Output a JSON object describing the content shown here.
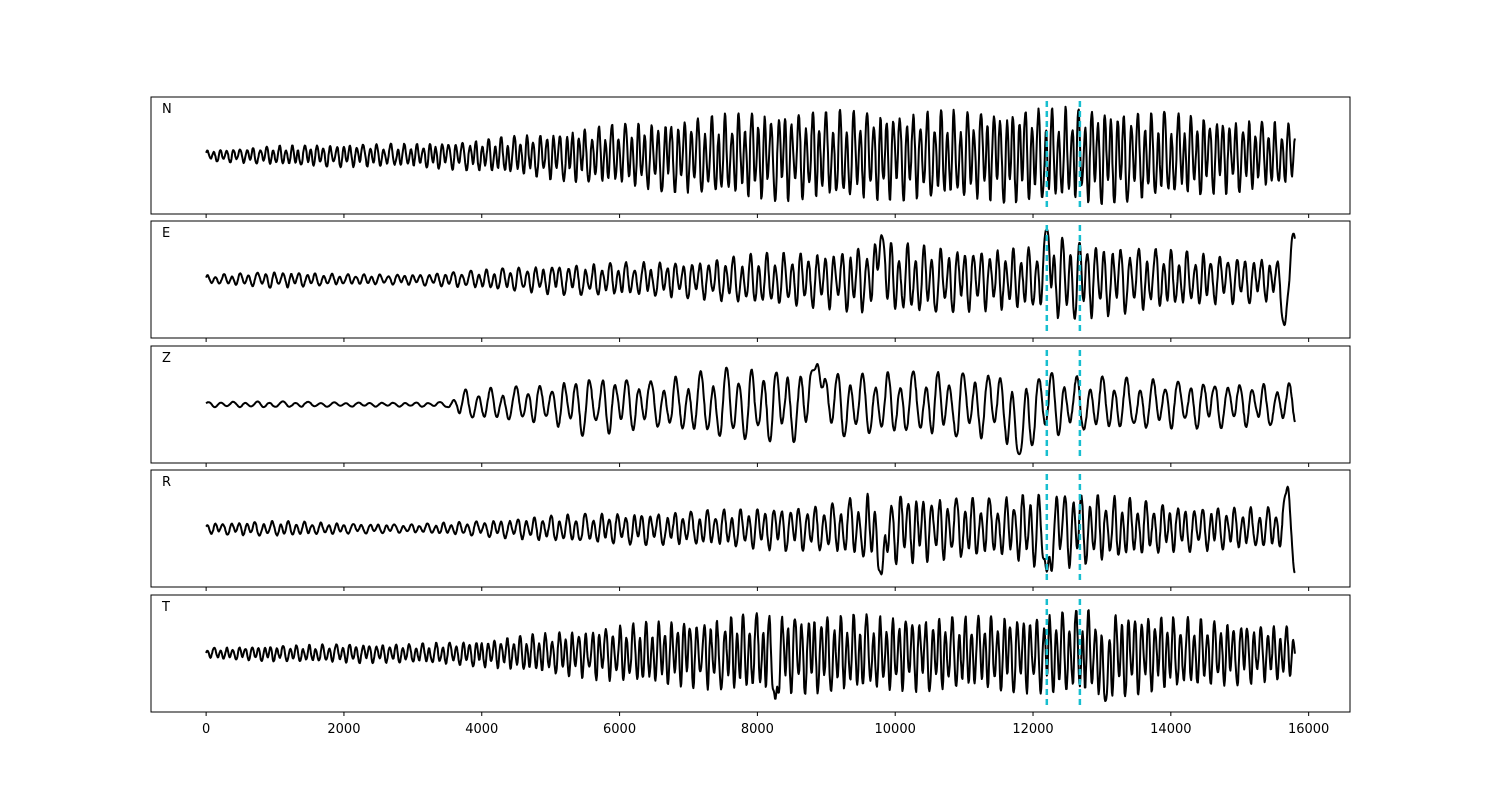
{
  "chart_data": {
    "type": "line",
    "title": "",
    "xlabel": "",
    "ylabel": "",
    "xlim": [
      -800,
      16600
    ],
    "x_ticks": [
      0,
      2000,
      4000,
      6000,
      8000,
      10000,
      12000,
      14000,
      16000
    ],
    "x_tick_labels": [
      "0",
      "2000",
      "4000",
      "6000",
      "8000",
      "10000",
      "12000",
      "14000",
      "16000"
    ],
    "grid": false,
    "legend": "none",
    "sample_count": 15800,
    "pick_color": "#17becf",
    "trace_color": "#000000",
    "vertical_markers": [
      12200,
      12680
    ],
    "series": [
      {
        "name": "N",
        "envelope": [
          [
            0,
            0.1
          ],
          [
            1000,
            0.18
          ],
          [
            2000,
            0.22
          ],
          [
            3000,
            0.22
          ],
          [
            4000,
            0.3
          ],
          [
            5000,
            0.45
          ],
          [
            6000,
            0.6
          ],
          [
            7000,
            0.72
          ],
          [
            8000,
            0.85
          ],
          [
            9000,
            0.85
          ],
          [
            10000,
            0.85
          ],
          [
            11000,
            0.85
          ],
          [
            12000,
            0.9
          ],
          [
            13000,
            0.92
          ],
          [
            14000,
            0.8
          ],
          [
            15000,
            0.7
          ],
          [
            15800,
            0.6
          ]
        ],
        "period_samples": 95,
        "peak_samples": []
      },
      {
        "name": "E",
        "envelope": [
          [
            0,
            0.08
          ],
          [
            1000,
            0.16
          ],
          [
            2000,
            0.1
          ],
          [
            3000,
            0.1
          ],
          [
            4000,
            0.18
          ],
          [
            5000,
            0.28
          ],
          [
            6000,
            0.32
          ],
          [
            7000,
            0.35
          ],
          [
            8000,
            0.5
          ],
          [
            9000,
            0.55
          ],
          [
            9800,
            0.7
          ],
          [
            10500,
            0.65
          ],
          [
            11000,
            0.6
          ],
          [
            12000,
            0.6
          ],
          [
            12200,
            0.85
          ],
          [
            13000,
            0.7
          ],
          [
            14000,
            0.55
          ],
          [
            15000,
            0.45
          ],
          [
            15700,
            0.4
          ],
          [
            15800,
            0.4
          ]
        ],
        "period_samples": 120,
        "peak_samples": [
          [
            9800,
            0.82
          ],
          [
            12200,
            0.92
          ],
          [
            15650,
            -0.85
          ],
          [
            15780,
            0.85
          ]
        ]
      },
      {
        "name": "Z",
        "envelope": [
          [
            0,
            0.05
          ],
          [
            1000,
            0.06
          ],
          [
            2000,
            0.04
          ],
          [
            3000,
            0.04
          ],
          [
            3500,
            0.05
          ],
          [
            3700,
            0.28
          ],
          [
            5000,
            0.38
          ],
          [
            5500,
            0.6
          ],
          [
            6500,
            0.45
          ],
          [
            7500,
            0.7
          ],
          [
            8500,
            0.7
          ],
          [
            9500,
            0.6
          ],
          [
            10500,
            0.62
          ],
          [
            11500,
            0.65
          ],
          [
            11800,
            0.85
          ],
          [
            12500,
            0.55
          ],
          [
            13500,
            0.5
          ],
          [
            14500,
            0.45
          ],
          [
            15800,
            0.4
          ]
        ],
        "period_samples": 180,
        "peak_samples": [
          [
            11800,
            -0.92
          ],
          [
            8870,
            0.75
          ]
        ]
      },
      {
        "name": "R",
        "envelope": [
          [
            0,
            0.1
          ],
          [
            1000,
            0.15
          ],
          [
            2000,
            0.1
          ],
          [
            3000,
            0.08
          ],
          [
            4000,
            0.15
          ],
          [
            5000,
            0.25
          ],
          [
            6000,
            0.3
          ],
          [
            7000,
            0.32
          ],
          [
            8000,
            0.4
          ],
          [
            9000,
            0.45
          ],
          [
            9800,
            0.72
          ],
          [
            10500,
            0.62
          ],
          [
            11500,
            0.55
          ],
          [
            12200,
            0.8
          ],
          [
            13000,
            0.65
          ],
          [
            14000,
            0.45
          ],
          [
            15000,
            0.4
          ],
          [
            15800,
            0.4
          ]
        ],
        "period_samples": 120,
        "peak_samples": [
          [
            9800,
            -0.85
          ],
          [
            12200,
            -0.8
          ],
          [
            15700,
            0.82
          ],
          [
            15800,
            -0.82
          ]
        ]
      },
      {
        "name": "T",
        "envelope": [
          [
            0,
            0.1
          ],
          [
            1000,
            0.15
          ],
          [
            2000,
            0.18
          ],
          [
            3000,
            0.18
          ],
          [
            4000,
            0.25
          ],
          [
            5000,
            0.4
          ],
          [
            6000,
            0.55
          ],
          [
            7000,
            0.65
          ],
          [
            8000,
            0.75
          ],
          [
            9000,
            0.75
          ],
          [
            10000,
            0.72
          ],
          [
            11000,
            0.7
          ],
          [
            12000,
            0.75
          ],
          [
            12700,
            0.82
          ],
          [
            13000,
            0.85
          ],
          [
            14000,
            0.7
          ],
          [
            15000,
            0.6
          ],
          [
            15800,
            0.5
          ]
        ],
        "period_samples": 95,
        "peak_samples": [
          [
            8260,
            -0.85
          ],
          [
            13050,
            -0.88
          ]
        ]
      }
    ]
  }
}
